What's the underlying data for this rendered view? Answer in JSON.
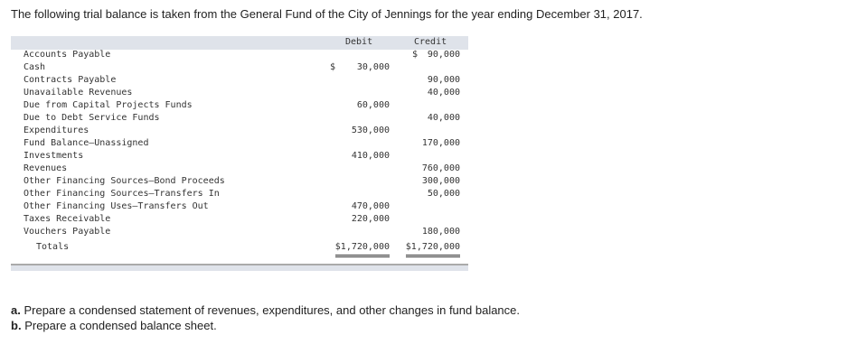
{
  "intro": "The following trial balance is taken from the General Fund of the City of Jennings for the year ending December 31, 2017.",
  "table": {
    "columns": [
      "Debit",
      "Credit"
    ],
    "rows": [
      {
        "account": "Accounts Payable",
        "credit_sign": "$",
        "credit": "90,000"
      },
      {
        "account": "Cash",
        "debit_sign": "$",
        "debit": "30,000"
      },
      {
        "account": "Contracts Payable",
        "credit": "90,000"
      },
      {
        "account": "Unavailable Revenues",
        "credit": "40,000"
      },
      {
        "account": "Due from Capital Projects Funds",
        "debit": "60,000"
      },
      {
        "account": "Due to Debt Service Funds",
        "credit": "40,000"
      },
      {
        "account": "Expenditures",
        "debit": "530,000"
      },
      {
        "account": "Fund Balance—Unassigned",
        "credit": "170,000"
      },
      {
        "account": "Investments",
        "debit": "410,000"
      },
      {
        "account": "Revenues",
        "credit": "760,000"
      },
      {
        "account": "Other Financing Sources—Bond Proceeds",
        "credit": "300,000"
      },
      {
        "account": "Other Financing Sources—Transfers In",
        "credit": "50,000"
      },
      {
        "account": "Other Financing Uses—Transfers Out",
        "debit": "470,000"
      },
      {
        "account": "Taxes Receivable",
        "debit": "220,000"
      },
      {
        "account": "Vouchers Payable",
        "credit": "180,000"
      }
    ],
    "totals": {
      "label": "Totals",
      "debit": "$1,720,000",
      "credit": "$1,720,000"
    }
  },
  "questions": [
    {
      "label": "a.",
      "text": "Prepare a condensed statement of revenues, expenditures, and other changes in fund balance."
    },
    {
      "label": "b.",
      "text": "Prepare a condensed balance sheet."
    }
  ]
}
